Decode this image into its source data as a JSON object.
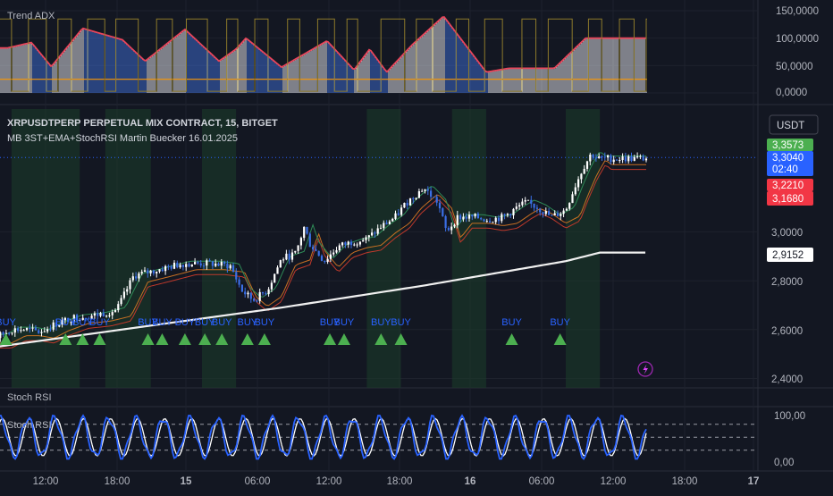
{
  "panes": {
    "adx": {
      "title": "Trend ADX",
      "ticks": [
        "150,0000",
        "100,0000",
        "50,0000",
        "0,0000"
      ]
    },
    "price": {
      "title": "XRPUSDTPERP PERPETUAL MIX CONTRACT, 15, BITGET",
      "subtitle": "MB 3ST+EMA+StochRSI Martin Buecker 16.01.2025",
      "currency_button": "USDT",
      "ticks": [
        "3,0000",
        "2,8000",
        "2,6000",
        "2,4000"
      ],
      "price_tags": [
        {
          "label": "3,3573",
          "color": "#4caf50"
        },
        {
          "label": "3,3040",
          "label2": "02:40",
          "color": "#2962ff"
        },
        {
          "label": "3,2210",
          "color": "#f23645"
        },
        {
          "label": "3,1680",
          "color": "#f23645"
        },
        {
          "label": "2,9152",
          "color": "#ffffff"
        }
      ],
      "lightning_icon": "lightning-icon"
    },
    "stoch_header": {
      "title": "Stoch RSI"
    },
    "stoch": {
      "title": "Stoch RSI",
      "ticks": [
        "100,00",
        "0,00"
      ]
    }
  },
  "time_axis": {
    "labels": [
      "12:00",
      "18:00",
      "15",
      "06:00",
      "12:00",
      "18:00",
      "16",
      "06:00",
      "12:00",
      "18:00",
      "17"
    ]
  },
  "chart_data": [
    {
      "type": "bar",
      "title": "Trend ADX",
      "ylim": [
        0,
        150
      ],
      "peaks": [
        {
          "t": 0.035,
          "value": 82
        },
        {
          "t": 0.12,
          "value": 92
        },
        {
          "t": 0.19,
          "value": 48
        },
        {
          "t": 0.3,
          "value": 118
        },
        {
          "t": 0.44,
          "value": 97
        },
        {
          "t": 0.52,
          "value": 58
        },
        {
          "t": 0.66,
          "value": 116
        },
        {
          "t": 0.78,
          "value": 58
        },
        {
          "t": 0.84,
          "value": 80
        },
        {
          "t": 0.875,
          "value": 100
        },
        {
          "t": 1.0,
          "value": 47
        },
        {
          "t": 1.16,
          "value": 95
        },
        {
          "t": 1.255,
          "value": 42
        },
        {
          "t": 1.31,
          "value": 80
        },
        {
          "t": 1.37,
          "value": 38
        },
        {
          "t": 1.46,
          "value": 88
        },
        {
          "t": 1.57,
          "value": 140
        },
        {
          "t": 1.72,
          "value": 38
        },
        {
          "t": 1.8,
          "value": 45
        },
        {
          "t": 1.96,
          "value": 45
        },
        {
          "t": 2.07,
          "value": 100
        }
      ],
      "threshold": 25
    },
    {
      "type": "line",
      "title": "XRPUSDTPERP PERPETUAL MIX CONTRACT, 15, BITGET",
      "ylim": [
        2.4,
        3.45
      ],
      "price_path": [
        [
          0.0,
          2.57
        ],
        [
          0.05,
          2.6
        ],
        [
          0.1,
          2.6
        ],
        [
          0.15,
          2.59
        ],
        [
          0.2,
          2.62
        ],
        [
          0.27,
          2.65
        ],
        [
          0.35,
          2.66
        ],
        [
          0.42,
          2.68
        ],
        [
          0.45,
          2.75
        ],
        [
          0.48,
          2.82
        ],
        [
          0.55,
          2.84
        ],
        [
          0.65,
          2.87
        ],
        [
          0.75,
          2.87
        ],
        [
          0.82,
          2.86
        ],
        [
          0.86,
          2.76
        ],
        [
          0.9,
          2.72
        ],
        [
          0.95,
          2.76
        ],
        [
          0.98,
          2.84
        ],
        [
          1.0,
          2.89
        ],
        [
          1.05,
          2.91
        ],
        [
          1.08,
          3.02
        ],
        [
          1.1,
          2.95
        ],
        [
          1.15,
          2.88
        ],
        [
          1.2,
          2.94
        ],
        [
          1.25,
          2.96
        ],
        [
          1.3,
          2.97
        ],
        [
          1.35,
          3.02
        ],
        [
          1.4,
          3.06
        ],
        [
          1.44,
          3.12
        ],
        [
          1.48,
          3.16
        ],
        [
          1.5,
          3.18
        ],
        [
          1.55,
          3.12
        ],
        [
          1.58,
          3.0
        ],
        [
          1.62,
          3.06
        ],
        [
          1.68,
          3.06
        ],
        [
          1.73,
          3.05
        ],
        [
          1.78,
          3.06
        ],
        [
          1.83,
          3.1
        ],
        [
          1.86,
          3.12
        ],
        [
          1.9,
          3.1
        ],
        [
          1.95,
          3.06
        ],
        [
          2.0,
          3.09
        ],
        [
          2.03,
          3.18
        ],
        [
          2.06,
          3.26
        ],
        [
          2.09,
          3.32
        ],
        [
          2.11,
          3.3
        ]
      ],
      "ema": [
        [
          0.0,
          2.53
        ],
        [
          0.5,
          2.61
        ],
        [
          1.0,
          2.69
        ],
        [
          1.5,
          2.78
        ],
        [
          2.0,
          2.88
        ],
        [
          2.12,
          2.915
        ]
      ],
      "buy_signals": [
        0.03,
        0.24,
        0.3,
        0.36,
        0.53,
        0.58,
        0.66,
        0.73,
        0.79,
        0.88,
        0.94,
        1.17,
        1.22,
        1.35,
        1.42,
        1.81,
        1.98
      ]
    },
    {
      "type": "line",
      "title": "Stoch RSI",
      "ylim": [
        0,
        100
      ],
      "levels": [
        80,
        50,
        20
      ]
    }
  ]
}
